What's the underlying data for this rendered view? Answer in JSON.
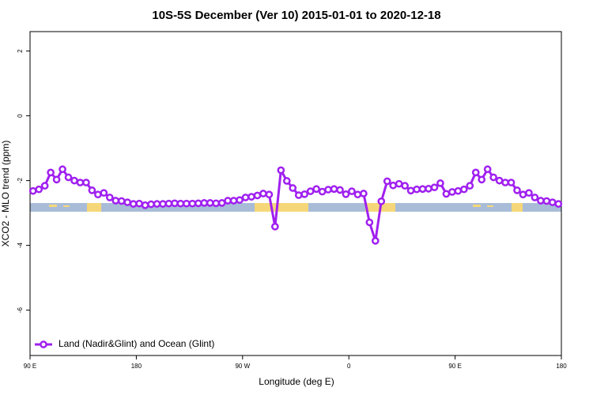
{
  "chart_data": {
    "type": "line",
    "title": "10S-5S December (Ver 10)   2015-01-01 to 2020-12-18",
    "x_label": "Longitude (deg E)",
    "y_label": "XCO2 - MLO trend (ppm)",
    "xlim": [
      90,
      540
    ],
    "ylim": [
      -7.4,
      2.6
    ],
    "xticks": [
      {
        "value": 90,
        "label": "90 E"
      },
      180,
      {
        "value": 270,
        "label": "90 W"
      },
      {
        "value": 360,
        "label": "0"
      },
      {
        "value": 450,
        "label": "90 E"
      },
      {
        "value": 540,
        "label": "180"
      }
    ],
    "yticks": [
      2,
      0,
      -2,
      -4,
      -6
    ],
    "legend": "bottom-left",
    "x": [
      92.5,
      97.5,
      102.5,
      107.5,
      112.5,
      117.5,
      122.5,
      127.5,
      132.5,
      137.5,
      142.5,
      147.5,
      152.5,
      157.5,
      162.5,
      167.5,
      172.5,
      177.5,
      182.5,
      187.5,
      192.5,
      197.5,
      202.5,
      207.5,
      212.5,
      217.5,
      222.5,
      227.5,
      232.5,
      237.5,
      242.5,
      247.5,
      252.5,
      257.5,
      262.5,
      267.5,
      272.5,
      277.5,
      282.5,
      287.5,
      292.5,
      297.5,
      302.5,
      307.5,
      312.5,
      317.5,
      322.5,
      327.5,
      332.5,
      337.5,
      342.5,
      347.5,
      352.5,
      357.5,
      362.5,
      367.5,
      372.5,
      377.5,
      382.5,
      387.5,
      392.5,
      397.5,
      402.5,
      407.5,
      412.5,
      417.5,
      422.5,
      427.5,
      432.5,
      437.5,
      442.5,
      447.5,
      452.5,
      457.5,
      462.5,
      467.5,
      472.5,
      477.5,
      482.5,
      487.5,
      492.5,
      497.5,
      502.5,
      507.5,
      512.5,
      517.5,
      522.5,
      527.5,
      532.5,
      537.5
    ],
    "series": [
      {
        "name": "Land (Nadir&Glint) and Ocean (Glint)",
        "color": "#a020f0",
        "values": [
          -2.32,
          -2.27,
          -2.16,
          -1.75,
          -1.97,
          -1.65,
          -1.9,
          -2.0,
          -2.06,
          -2.06,
          -2.3,
          -2.43,
          -2.38,
          -2.52,
          -2.62,
          -2.63,
          -2.67,
          -2.72,
          -2.71,
          -2.76,
          -2.73,
          -2.72,
          -2.72,
          -2.71,
          -2.7,
          -2.71,
          -2.71,
          -2.71,
          -2.7,
          -2.69,
          -2.69,
          -2.7,
          -2.69,
          -2.62,
          -2.62,
          -2.6,
          -2.52,
          -2.5,
          -2.46,
          -2.4,
          -2.43,
          -3.42,
          -1.68,
          -2.01,
          -2.23,
          -2.45,
          -2.42,
          -2.33,
          -2.26,
          -2.34,
          -2.28,
          -2.26,
          -2.29,
          -2.42,
          -2.33,
          -2.43,
          -2.4,
          -3.29,
          -3.86,
          -2.64,
          -2.02,
          -2.15,
          -2.1,
          -2.16,
          -2.31,
          -2.27,
          -2.26,
          -2.25,
          -2.21,
          -2.08,
          -2.41,
          -2.35,
          -2.32,
          -2.27,
          -2.16,
          -1.75,
          -1.97,
          -1.65,
          -1.9,
          -2.0,
          -2.06,
          -2.06,
          -2.3,
          -2.43,
          -2.38,
          -2.52,
          -2.62,
          -2.63,
          -2.67,
          -2.72
        ]
      }
    ]
  }
}
